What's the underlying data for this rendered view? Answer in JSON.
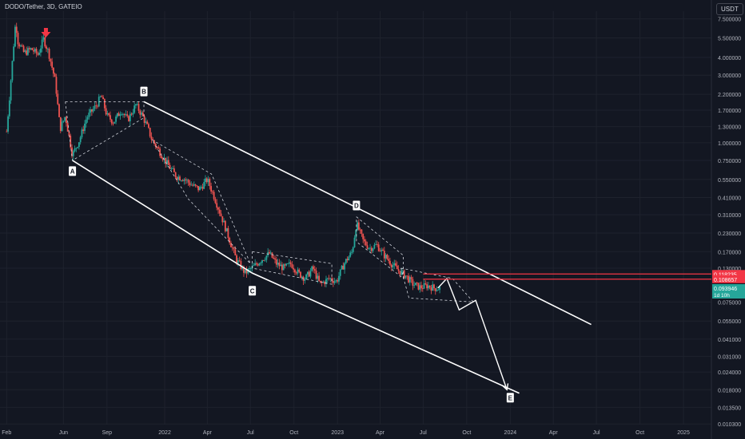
{
  "header": {
    "symbol": "DODO/Tether, 3D, GATEIO",
    "currency": "USDT"
  },
  "colors": {
    "bg": "#131722",
    "up": "#26a69a",
    "down": "#ef5350",
    "line": "#ffffff",
    "grid": "#1e222d",
    "axis_text": "#b2b5be"
  },
  "chart_data": {
    "type": "candlestick",
    "y_scale": "log",
    "ylim": [
      0.0102,
      8.5
    ],
    "y_ticks": [
      7.5,
      5.5,
      4.0,
      3.0,
      2.2,
      1.7,
      1.3,
      1.0,
      0.75,
      0.55,
      0.41,
      0.31,
      0.23,
      0.17,
      0.13,
      0.075,
      0.055,
      0.041,
      0.031,
      0.024,
      0.018,
      0.0135,
      0.0103
    ],
    "y_tick_labels": [
      "7.500000",
      "5.500000",
      "4.000000",
      "3.000000",
      "2.200000",
      "1.700000",
      "1.300000",
      "1.000000",
      "0.750000",
      "0.550000",
      "0.410000",
      "0.310000",
      "0.230000",
      "0.170000",
      "0.130000",
      "0.075000",
      "0.055000",
      "0.041000",
      "0.031000",
      "0.024000",
      "0.018000",
      "0.013500",
      "0.010300"
    ],
    "x_range": [
      "2021-01-18",
      "2025-03-01"
    ],
    "x_ticks": [
      {
        "date": "2021-02-01",
        "label": "Feb"
      },
      {
        "date": "2021-06-01",
        "label": "Jun"
      },
      {
        "date": "2021-09-01",
        "label": "Sep"
      },
      {
        "date": "2022-01-01",
        "label": "2022"
      },
      {
        "date": "2022-04-01",
        "label": "Apr"
      },
      {
        "date": "2022-07-01",
        "label": "Jul"
      },
      {
        "date": "2022-10-01",
        "label": "Oct"
      },
      {
        "date": "2023-01-01",
        "label": "2023"
      },
      {
        "date": "2023-04-01",
        "label": "Apr"
      },
      {
        "date": "2023-07-01",
        "label": "Jul"
      },
      {
        "date": "2023-10-01",
        "label": "Oct"
      },
      {
        "date": "2024-01-01",
        "label": "2024"
      },
      {
        "date": "2024-04-01",
        "label": "Apr"
      },
      {
        "date": "2024-07-01",
        "label": "Jul"
      },
      {
        "date": "2024-10-01",
        "label": "Oct"
      },
      {
        "date": "2025-01-01",
        "label": "2025"
      }
    ],
    "price_path": [
      [
        "2021-02-01",
        1.2
      ],
      [
        "2021-02-08",
        2.3
      ],
      [
        "2021-02-15",
        4.5
      ],
      [
        "2021-02-20",
        7.2
      ],
      [
        "2021-02-25",
        5.2
      ],
      [
        "2021-03-10",
        4.3
      ],
      [
        "2021-03-25",
        4.6
      ],
      [
        "2021-04-08",
        4.2
      ],
      [
        "2021-04-20",
        5.4
      ],
      [
        "2021-05-01",
        4.3
      ],
      [
        "2021-05-15",
        2.7
      ],
      [
        "2021-05-25",
        1.25
      ],
      [
        "2021-06-05",
        1.55
      ],
      [
        "2021-06-20",
        0.82
      ],
      [
        "2021-07-05",
        1.05
      ],
      [
        "2021-07-20",
        1.5
      ],
      [
        "2021-08-10",
        1.85
      ],
      [
        "2021-08-20",
        2.15
      ],
      [
        "2021-09-01",
        1.55
      ],
      [
        "2021-09-15",
        1.4
      ],
      [
        "2021-10-01",
        1.7
      ],
      [
        "2021-10-15",
        1.45
      ],
      [
        "2021-11-01",
        1.85
      ],
      [
        "2021-11-15",
        1.55
      ],
      [
        "2021-11-25",
        1.3
      ],
      [
        "2021-12-05",
        1.05
      ],
      [
        "2021-12-20",
        0.88
      ],
      [
        "2022-01-05",
        0.72
      ],
      [
        "2022-01-25",
        0.58
      ],
      [
        "2022-02-10",
        0.56
      ],
      [
        "2022-02-28",
        0.5
      ],
      [
        "2022-03-15",
        0.47
      ],
      [
        "2022-04-01",
        0.55
      ],
      [
        "2022-04-15",
        0.42
      ],
      [
        "2022-05-01",
        0.3
      ],
      [
        "2022-05-15",
        0.22
      ],
      [
        "2022-06-01",
        0.15
      ],
      [
        "2022-06-20",
        0.12
      ],
      [
        "2022-07-10",
        0.135
      ],
      [
        "2022-07-25",
        0.15
      ],
      [
        "2022-08-10",
        0.165
      ],
      [
        "2022-08-25",
        0.14
      ],
      [
        "2022-09-10",
        0.13
      ],
      [
        "2022-09-25",
        0.14
      ],
      [
        "2022-10-10",
        0.12
      ],
      [
        "2022-10-25",
        0.11
      ],
      [
        "2022-11-10",
        0.13
      ],
      [
        "2022-11-25",
        0.1
      ],
      [
        "2022-12-15",
        0.11
      ],
      [
        "2022-12-30",
        0.105
      ],
      [
        "2023-01-15",
        0.14
      ],
      [
        "2023-02-01",
        0.17
      ],
      [
        "2023-02-10",
        0.27
      ],
      [
        "2023-02-25",
        0.2
      ],
      [
        "2023-03-10",
        0.18
      ],
      [
        "2023-03-25",
        0.19
      ],
      [
        "2023-04-10",
        0.16
      ],
      [
        "2023-04-25",
        0.14
      ],
      [
        "2023-05-10",
        0.125
      ],
      [
        "2023-05-25",
        0.115
      ],
      [
        "2023-06-10",
        0.1
      ],
      [
        "2023-06-25",
        0.095
      ],
      [
        "2023-07-10",
        0.098
      ],
      [
        "2023-07-25",
        0.094
      ],
      [
        "2023-08-05",
        0.0939
      ]
    ],
    "points": [
      {
        "label": "A",
        "date": "2021-06-20",
        "price": 0.63,
        "pos": "below"
      },
      {
        "label": "B",
        "date": "2021-11-18",
        "price": 2.3,
        "pos": "above"
      },
      {
        "label": "C",
        "date": "2022-07-05",
        "price": 0.09,
        "pos": "below"
      },
      {
        "label": "D",
        "date": "2023-02-10",
        "price": 0.36,
        "pos": "above"
      },
      {
        "label": "E",
        "date": "2024-01-01",
        "price": 0.0158,
        "pos": "below"
      }
    ],
    "channel_lines": [
      [
        [
          "2021-06-20",
          0.75
        ],
        [
          "2022-07-05",
          0.12
        ],
        [
          "2024-01-20",
          0.017
        ]
      ],
      [
        [
          "2021-11-18",
          1.95
        ],
        [
          "2024-06-20",
          0.052
        ]
      ]
    ],
    "forecast_path": [
      [
        "2023-08-01",
        0.094
      ],
      [
        "2023-08-20",
        0.11
      ],
      [
        "2023-09-15",
        0.066
      ],
      [
        "2023-10-20",
        0.077
      ],
      [
        "2023-12-25",
        0.018
      ]
    ],
    "horizontal_levels": [
      {
        "label": "0.118235",
        "price": 0.118235,
        "from": "2023-07-01",
        "color": "#f23645"
      },
      {
        "label": "0.108657",
        "price": 0.108657,
        "from": "2023-07-01",
        "color": "#f23645"
      }
    ],
    "current_price": {
      "label": "0.093946",
      "countdown": "1d 10h",
      "price": 0.093946
    },
    "down_arrow": {
      "date": "2021-04-25",
      "price": 5.4
    }
  }
}
